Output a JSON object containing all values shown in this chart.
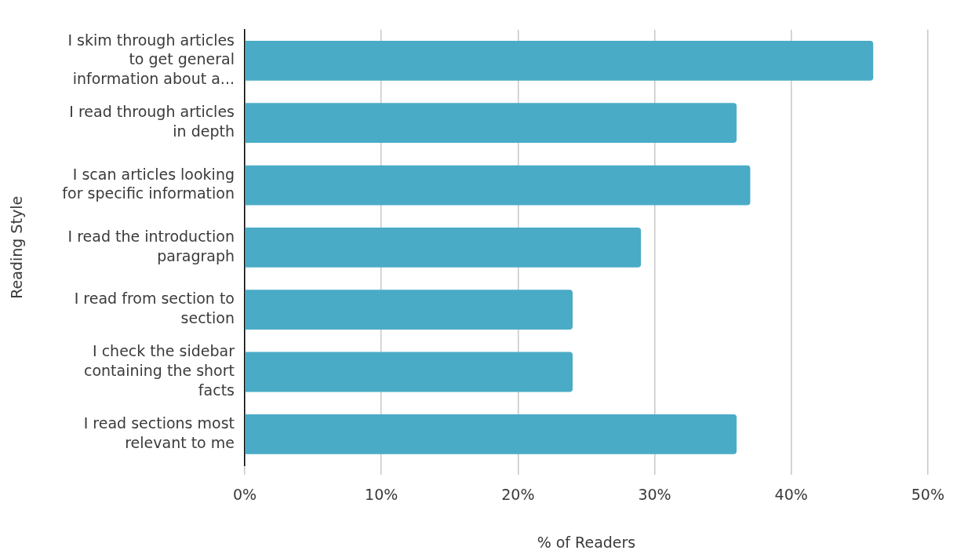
{
  "chart_data": {
    "type": "bar",
    "orientation": "horizontal",
    "categories": [
      "I skim through articles to get general information about a...",
      "I read through articles in depth",
      "I scan articles looking for specific information",
      "I read the introduction paragraph",
      "I read from section to section",
      "I check the sidebar containing the short facts",
      "I read sections most relevant to me"
    ],
    "values": [
      46,
      36,
      37,
      29,
      24,
      24,
      36
    ],
    "color": "#4aabc6",
    "xlim": [
      0,
      50
    ],
    "xticks": [
      {
        "value": 0,
        "label": "0%"
      },
      {
        "value": 10,
        "label": "10%"
      },
      {
        "value": 20,
        "label": "20%"
      },
      {
        "value": 30,
        "label": "30%"
      },
      {
        "value": 40,
        "label": "40%"
      },
      {
        "value": 50,
        "label": "50%"
      }
    ],
    "xlabel": "% of Readers",
    "ylabel": "Reading Style",
    "grid": "x"
  }
}
